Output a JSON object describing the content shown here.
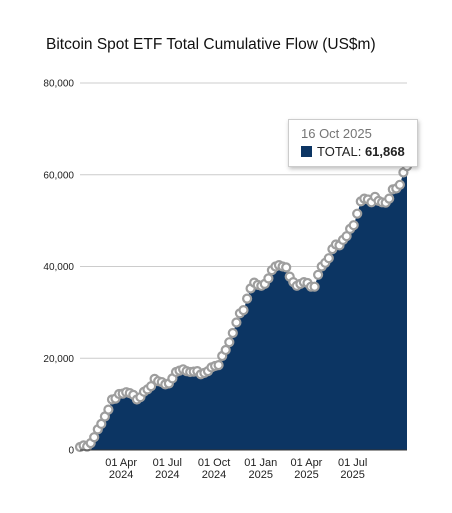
{
  "title": "Bitcoin Spot ETF Total Cumulative Flow (US$m)",
  "colors": {
    "area": "#0c3563",
    "marker": "#9e9e9e",
    "grid": "#cccccc"
  },
  "tooltip": {
    "date": "16 Oct 2025",
    "series": "TOTAL",
    "value": "61,868"
  },
  "chart_data": {
    "type": "area",
    "title": "Bitcoin Spot ETF Total Cumulative Flow (US$m)",
    "ylim": [
      0,
      80000
    ],
    "yticks": [
      0,
      20000,
      40000,
      60000,
      80000
    ],
    "ytick_labels": [
      "0",
      "20,000",
      "40,000",
      "60,000",
      "80,000"
    ],
    "xlim": [
      "2024-01-11",
      "2025-10-16"
    ],
    "xticks": [
      {
        "date": "2024-04-01",
        "label": [
          "01 Apr",
          "2024"
        ]
      },
      {
        "date": "2024-07-01",
        "label": [
          "01 Jul",
          "2024"
        ]
      },
      {
        "date": "2024-10-01",
        "label": [
          "01 Oct",
          "2024"
        ]
      },
      {
        "date": "2025-01-01",
        "label": [
          "01 Jan",
          "2025"
        ]
      },
      {
        "date": "2025-04-01",
        "label": [
          "01 Apr",
          "2025"
        ]
      },
      {
        "date": "2025-07-01",
        "label": [
          "01 Jul",
          "2025"
        ]
      }
    ],
    "grid": true,
    "legend": "none",
    "series": [
      {
        "name": "TOTAL",
        "points": [
          [
            "2024-01-11",
            655
          ],
          [
            "2024-01-18",
            1000
          ],
          [
            "2024-01-25",
            750
          ],
          [
            "2024-02-01",
            1500
          ],
          [
            "2024-02-08",
            2800
          ],
          [
            "2024-02-15",
            4500
          ],
          [
            "2024-02-22",
            5700
          ],
          [
            "2024-02-29",
            7300
          ],
          [
            "2024-03-07",
            8800
          ],
          [
            "2024-03-14",
            11000
          ],
          [
            "2024-03-21",
            11200
          ],
          [
            "2024-03-28",
            12200
          ],
          [
            "2024-04-04",
            12300
          ],
          [
            "2024-04-11",
            12600
          ],
          [
            "2024-04-18",
            12400
          ],
          [
            "2024-04-25",
            12000
          ],
          [
            "2024-05-02",
            11000
          ],
          [
            "2024-05-09",
            11500
          ],
          [
            "2024-05-16",
            12700
          ],
          [
            "2024-05-23",
            13200
          ],
          [
            "2024-05-30",
            13900
          ],
          [
            "2024-06-06",
            15500
          ],
          [
            "2024-06-13",
            15000
          ],
          [
            "2024-06-20",
            14800
          ],
          [
            "2024-06-27",
            14300
          ],
          [
            "2024-07-04",
            14500
          ],
          [
            "2024-07-11",
            15600
          ],
          [
            "2024-07-18",
            17000
          ],
          [
            "2024-07-25",
            17300
          ],
          [
            "2024-08-01",
            17600
          ],
          [
            "2024-08-08",
            17200
          ],
          [
            "2024-08-15",
            17000
          ],
          [
            "2024-08-22",
            17100
          ],
          [
            "2024-08-29",
            17200
          ],
          [
            "2024-09-05",
            16500
          ],
          [
            "2024-09-12",
            16800
          ],
          [
            "2024-09-19",
            17200
          ],
          [
            "2024-09-26",
            18000
          ],
          [
            "2024-10-03",
            18300
          ],
          [
            "2024-10-10",
            18500
          ],
          [
            "2024-10-17",
            20500
          ],
          [
            "2024-10-24",
            21800
          ],
          [
            "2024-10-31",
            23500
          ],
          [
            "2024-11-07",
            25500
          ],
          [
            "2024-11-14",
            27800
          ],
          [
            "2024-11-21",
            29800
          ],
          [
            "2024-11-28",
            30500
          ],
          [
            "2024-12-05",
            33000
          ],
          [
            "2024-12-12",
            35200
          ],
          [
            "2024-12-19",
            36500
          ],
          [
            "2024-12-26",
            36000
          ],
          [
            "2025-01-02",
            35800
          ],
          [
            "2025-01-09",
            36200
          ],
          [
            "2025-01-16",
            37400
          ],
          [
            "2025-01-23",
            39200
          ],
          [
            "2025-01-30",
            40000
          ],
          [
            "2025-02-06",
            40300
          ],
          [
            "2025-02-13",
            40000
          ],
          [
            "2025-02-20",
            39800
          ],
          [
            "2025-02-27",
            37800
          ],
          [
            "2025-03-06",
            36600
          ],
          [
            "2025-03-13",
            35800
          ],
          [
            "2025-03-20",
            36200
          ],
          [
            "2025-03-27",
            36600
          ],
          [
            "2025-04-03",
            36400
          ],
          [
            "2025-04-10",
            35600
          ],
          [
            "2025-04-17",
            35600
          ],
          [
            "2025-04-24",
            38200
          ],
          [
            "2025-05-01",
            40000
          ],
          [
            "2025-05-08",
            40800
          ],
          [
            "2025-05-15",
            41800
          ],
          [
            "2025-05-22",
            43800
          ],
          [
            "2025-05-29",
            44800
          ],
          [
            "2025-06-05",
            44600
          ],
          [
            "2025-06-12",
            45800
          ],
          [
            "2025-06-19",
            46600
          ],
          [
            "2025-06-26",
            48200
          ],
          [
            "2025-07-03",
            49000
          ],
          [
            "2025-07-10",
            51500
          ],
          [
            "2025-07-17",
            54200
          ],
          [
            "2025-07-24",
            54800
          ],
          [
            "2025-07-31",
            54600
          ],
          [
            "2025-08-07",
            54000
          ],
          [
            "2025-08-14",
            55200
          ],
          [
            "2025-08-21",
            54300
          ],
          [
            "2025-08-28",
            54000
          ],
          [
            "2025-09-04",
            53900
          ],
          [
            "2025-09-11",
            54800
          ],
          [
            "2025-09-18",
            56800
          ],
          [
            "2025-09-25",
            57000
          ],
          [
            "2025-10-02",
            57800
          ],
          [
            "2025-10-09",
            60500
          ],
          [
            "2025-10-16",
            61868
          ]
        ]
      }
    ]
  }
}
